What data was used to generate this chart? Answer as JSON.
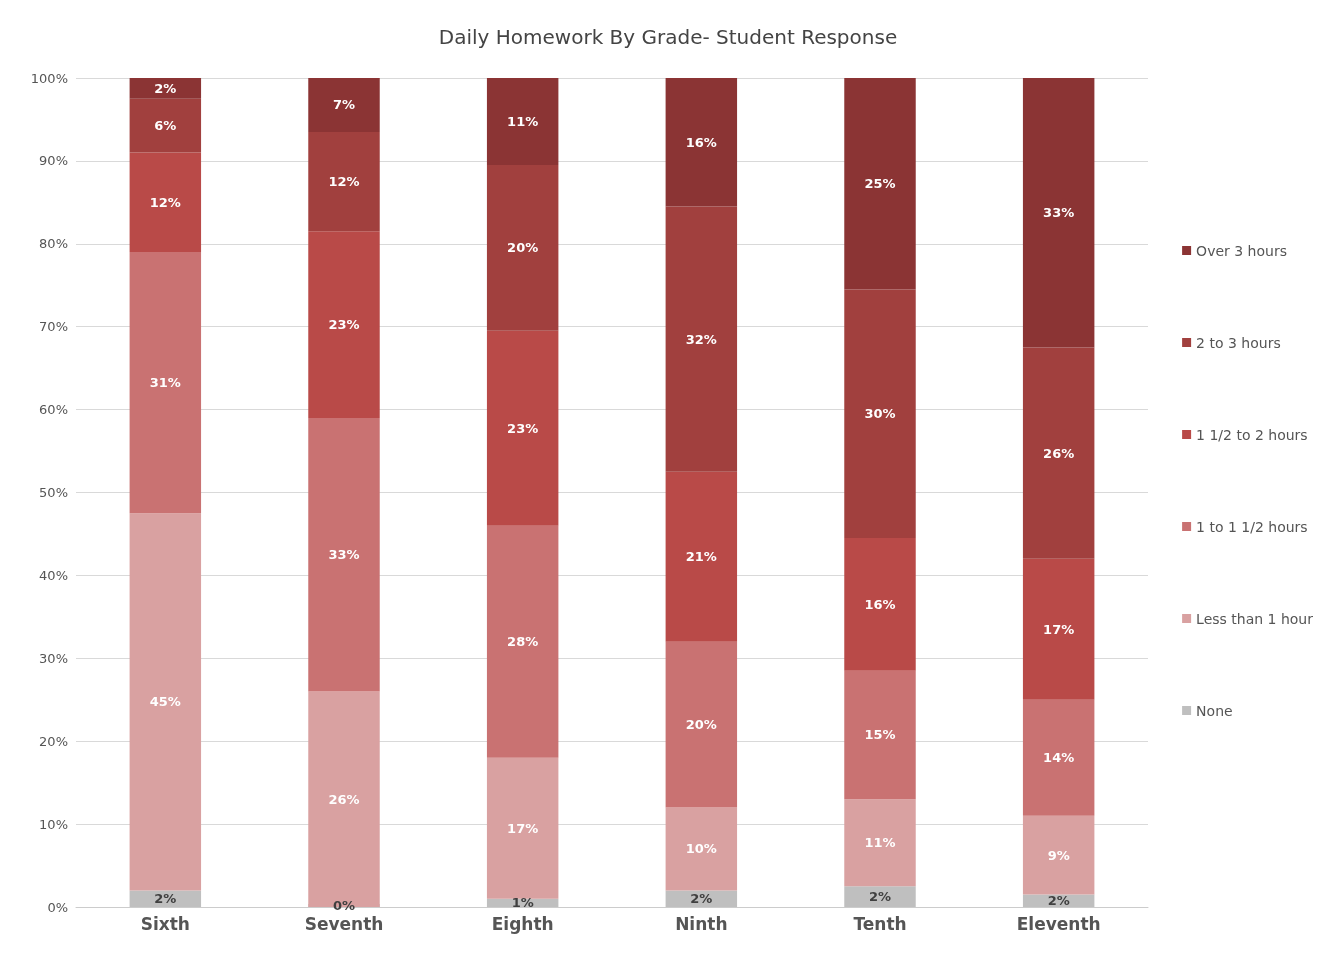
{
  "chart_data": {
    "type": "bar",
    "stacked": true,
    "title": "Daily Homework By Grade- Student Response",
    "categories": [
      "Sixth",
      "Seventh",
      "Eighth",
      "Ninth",
      "Tenth",
      "Eleventh"
    ],
    "series": [
      {
        "name": "None",
        "color": "#bfbfbf",
        "values": [
          2,
          0,
          1,
          2,
          2.5,
          1.5
        ],
        "value_labels": [
          "2%",
          "0%",
          "1%",
          "2%",
          "2%",
          "2%"
        ]
      },
      {
        "name": "Less than 1 hour",
        "color": "#d9a1a1",
        "values": [
          45.5,
          26,
          17,
          10,
          10.5,
          9.5
        ],
        "value_labels": [
          "45%",
          "26%",
          "17%",
          "10%",
          "11%",
          "9%"
        ]
      },
      {
        "name": "1 to 1 1/2 hours",
        "color": "#c97272",
        "values": [
          31.5,
          33,
          28,
          20,
          15.5,
          14
        ],
        "value_labels": [
          "31%",
          "33%",
          "28%",
          "20%",
          "15%",
          "14%"
        ]
      },
      {
        "name": "1 1/2 to 2 hours",
        "color": "#b94a48",
        "values": [
          12,
          22.5,
          23.5,
          20.5,
          16,
          17
        ],
        "value_labels": [
          "12%",
          "23%",
          "23%",
          "21%",
          "16%",
          "17%"
        ]
      },
      {
        "name": "2 to 3 hours",
        "color": "#a1403e",
        "values": [
          6.5,
          12,
          20,
          32,
          30,
          25.5
        ],
        "value_labels": [
          "6%",
          "12%",
          "20%",
          "32%",
          "30%",
          "26%"
        ]
      },
      {
        "name": "Over 3 hours",
        "color": "#8b3434",
        "values": [
          2.5,
          6.5,
          10.5,
          15.5,
          25.5,
          32.5
        ],
        "value_labels": [
          "2%",
          "7%",
          "11%",
          "16%",
          "25%",
          "33%"
        ]
      }
    ],
    "ylim": [
      0,
      100
    ],
    "yticks": [
      {
        "value": 0,
        "label": "0%"
      },
      {
        "value": 10,
        "label": "10%"
      },
      {
        "value": 20,
        "label": "20%"
      },
      {
        "value": 30,
        "label": "30%"
      },
      {
        "value": 40,
        "label": "40%"
      },
      {
        "value": 50,
        "label": "50%"
      },
      {
        "value": 60,
        "label": "60%"
      },
      {
        "value": 70,
        "label": "70%"
      },
      {
        "value": 80,
        "label": "80%"
      },
      {
        "value": 90,
        "label": "90%"
      },
      {
        "value": 100,
        "label": "100%"
      }
    ],
    "grid": "y",
    "legend": "right"
  }
}
